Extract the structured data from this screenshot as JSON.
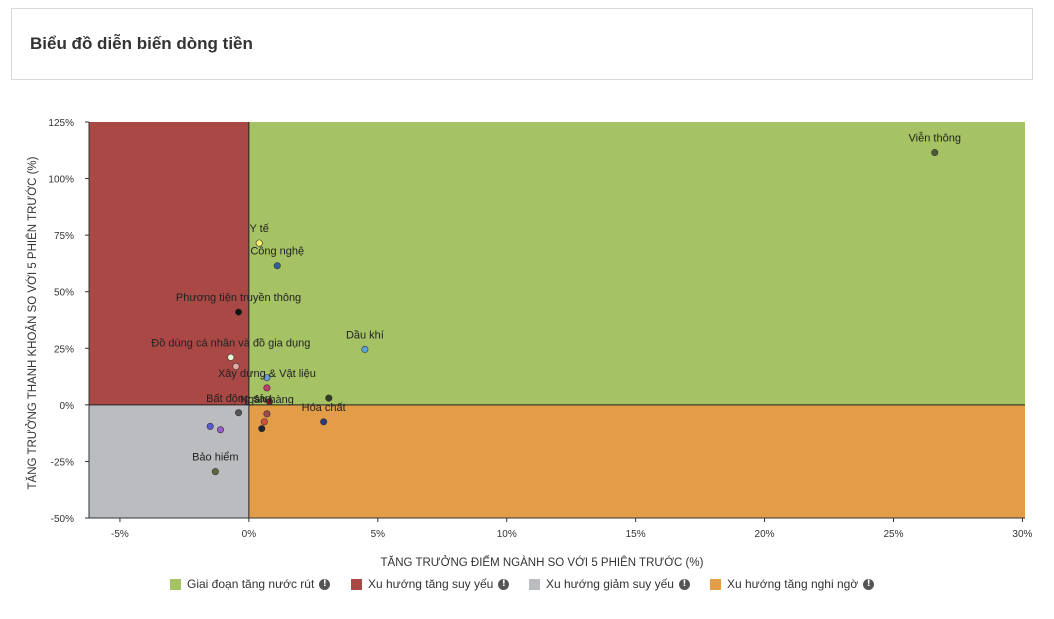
{
  "header": {
    "title": "Biểu đồ diễn biến dòng tiền"
  },
  "chart_data": {
    "type": "scatter",
    "xlabel": "TĂNG TRƯỞNG ĐIỂM NGÀNH SO VỚI 5 PHIÊN TRƯỚC (%)",
    "ylabel": "TĂNG TRƯỞNG THANH KHOẢN SO VỚI 5 PHIÊN TRƯỚC (%)",
    "xlim": [
      -6.2,
      30.1
    ],
    "ylim": [
      -50,
      125
    ],
    "x_ticks": [
      {
        "value": -5,
        "label": "-5%"
      },
      {
        "value": 0,
        "label": "0%"
      },
      {
        "value": 5,
        "label": "5%"
      },
      {
        "value": 10,
        "label": "10%"
      },
      {
        "value": 15,
        "label": "15%"
      },
      {
        "value": 20,
        "label": "20%"
      },
      {
        "value": 25,
        "label": "25%"
      },
      {
        "value": 30,
        "label": "30%"
      }
    ],
    "y_ticks": [
      {
        "value": 125,
        "label": "125%"
      },
      {
        "value": 100,
        "label": "100%"
      },
      {
        "value": 75,
        "label": "75%"
      },
      {
        "value": 50,
        "label": "50%"
      },
      {
        "value": 25,
        "label": "25%"
      },
      {
        "value": 0,
        "label": "0%"
      },
      {
        "value": -25,
        "label": "-25%"
      },
      {
        "value": -50,
        "label": "-50%"
      }
    ],
    "quadrants": [
      {
        "name": "Giai đoạn tăng nước rút",
        "color": "#a5c264"
      },
      {
        "name": "Xu hướng tăng suy yếu",
        "color": "#a94845"
      },
      {
        "name": "Xu hướng giảm suy yếu",
        "color": "#bbbcc0"
      },
      {
        "name": "Xu hướng tăng nghi ngờ",
        "color": "#e39c48"
      }
    ],
    "points": [
      {
        "label": "Viễn thông",
        "x": 26.6,
        "y": 111.5,
        "color": "#4c5a34"
      },
      {
        "label": "Y tế",
        "x": 0.4,
        "y": 71.5,
        "color": "#f5f26a"
      },
      {
        "label": "Công nghệ",
        "x": 1.1,
        "y": 61.5,
        "color": "#2f5f9e"
      },
      {
        "label": "Phương tiện truyền thông",
        "x": -0.4,
        "y": 41,
        "color": "#111111"
      },
      {
        "label": "Dầu khí",
        "x": 4.5,
        "y": 24.5,
        "color": "#5aa3e0"
      },
      {
        "label": "Đồ dùng cá nhân và đồ gia dụng",
        "x": -0.7,
        "y": 21,
        "color": "#e8f5d0"
      },
      {
        "label": "",
        "x": -0.5,
        "y": 17,
        "color": "#e8a8a8"
      },
      {
        "label": "",
        "x": 0.7,
        "y": 12,
        "color": "#6a9ad0"
      },
      {
        "label": "Xây dựng & Vật liệu",
        "x": 0.7,
        "y": 7.5,
        "color": "#c83a6a"
      },
      {
        "label": "",
        "x": 3.1,
        "y": 3,
        "color": "#2f3a22"
      },
      {
        "label": "",
        "x": 0.8,
        "y": 1.5,
        "color": "#7a1a2a"
      },
      {
        "label": "Bất động sản",
        "x": -0.4,
        "y": -3.5,
        "color": "#555555"
      },
      {
        "label": "Ngân hàng",
        "x": 0.7,
        "y": -4,
        "color": "#a04a4a"
      },
      {
        "label": "Hóa chất",
        "x": 2.9,
        "y": -7.5,
        "color": "#2a3a7a"
      },
      {
        "label": "",
        "x": 0.6,
        "y": -7.5,
        "color": "#d2503a"
      },
      {
        "label": "",
        "x": 0.5,
        "y": -10.5,
        "color": "#222233"
      },
      {
        "label": "",
        "x": -1.5,
        "y": -9.5,
        "color": "#5a5ad0"
      },
      {
        "label": "",
        "x": -1.1,
        "y": -11,
        "color": "#9a5ad0"
      },
      {
        "label": "Bảo hiểm",
        "x": -1.3,
        "y": -29.5,
        "color": "#5a6a3a"
      }
    ],
    "grid": false,
    "legend_placement": "bottom"
  }
}
